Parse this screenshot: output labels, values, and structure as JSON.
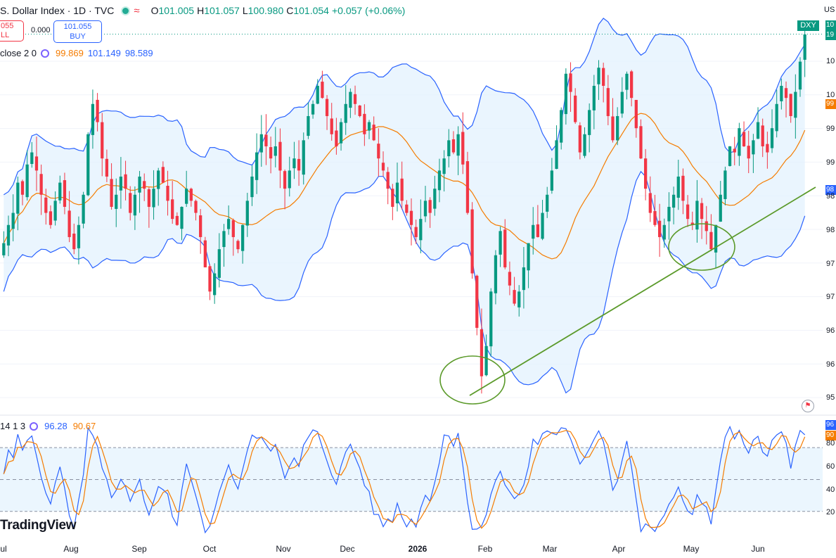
{
  "header": {
    "title": "S. Dollar Index · 1D · TVC",
    "open_label": "O",
    "open": "101.005",
    "high_label": "H",
    "high": "101.057",
    "low_label": "L",
    "low": "100.980",
    "close_label": "C",
    "close": "101.054",
    "change": "+0.057 (+0.06%)"
  },
  "trade": {
    "sell_price": "055",
    "sell_label": "LL",
    "spread": "0.000",
    "buy_price": "101.055",
    "buy_label": "BUY"
  },
  "bb_legend": {
    "params": "close 2 0",
    "basis": "99.869",
    "upper": "101.149",
    "lower": "98.589"
  },
  "stoch_legend": {
    "params": "14 1 3",
    "k": "96.28",
    "d": "90.67"
  },
  "brand": {
    "logo_text": "TradingView"
  },
  "right_axis": {
    "currency": "US",
    "symbol_tag": "DXY",
    "last_price_label": "10",
    "last_price_sub": "19",
    "bb_basis_label": "99",
    "bb_lower_label": "98",
    "price_ticks": [
      "10",
      "10",
      "99",
      "99",
      "98",
      "98",
      "97",
      "97",
      "96",
      "96",
      "95"
    ],
    "stoch_k_label": "96",
    "stoch_d_label": "90",
    "stoch_ticks": [
      "80",
      "60",
      "40",
      "20"
    ]
  },
  "colors": {
    "up": "#089981",
    "down": "#f23645",
    "bb_band": "#2962ff",
    "bb_basis": "#f57c00",
    "bb_fill": "#e3f2fd",
    "trendline": "#5b9a2a",
    "stoch_k": "#2962ff",
    "stoch_d": "#f57c00"
  },
  "chart_data": {
    "type": "candlestick",
    "symbol": "DXY",
    "interval": "1D",
    "price_range": [
      95.0,
      101.1
    ],
    "x_labels": [
      "Jul",
      "Aug",
      "Sep",
      "Oct",
      "Nov",
      "Dec",
      "2026",
      "Feb",
      "Mar",
      "Apr",
      "May",
      "Jun"
    ],
    "last_close": 101.054,
    "bollinger": {
      "basis": 99.869,
      "upper": 101.149,
      "lower": 98.589
    },
    "stochastic": {
      "k": 96.28,
      "d": 90.67,
      "levels": [
        80,
        50,
        20
      ]
    },
    "closes": [
      97.6,
      97.9,
      98.1,
      98.6,
      98.4,
      98.9,
      99.1,
      98.8,
      98.4,
      98.1,
      97.9,
      98.3,
      98.6,
      98.2,
      97.7,
      97.5,
      97.9,
      98.4,
      99.4,
      99.9,
      99.6,
      99.0,
      98.7,
      98.2,
      98.4,
      98.7,
      98.5,
      98.1,
      98.4,
      98.7,
      98.5,
      98.2,
      98.5,
      98.8,
      98.6,
      98.3,
      98.0,
      97.9,
      98.2,
      98.5,
      98.3,
      98.1,
      97.7,
      97.2,
      96.8,
      97.1,
      97.5,
      97.8,
      98.0,
      97.7,
      97.5,
      97.9,
      98.3,
      98.7,
      99.1,
      99.4,
      99.2,
      99.0,
      99.2,
      98.8,
      98.5,
      98.8,
      99.0,
      98.8,
      99.3,
      99.7,
      99.9,
      100.2,
      100.0,
      99.7,
      99.4,
      99.2,
      99.6,
      99.9,
      100.1,
      99.9,
      99.7,
      99.4,
      99.6,
      99.3,
      99.0,
      98.8,
      98.5,
      98.2,
      98.6,
      98.3,
      98.1,
      97.9,
      97.7,
      98.0,
      98.3,
      98.1,
      98.5,
      98.8,
      99.0,
      99.3,
      99.1,
      99.4,
      98.9,
      98.1,
      97.1,
      96.2,
      95.4,
      95.9,
      96.8,
      97.4,
      97.8,
      97.2,
      96.9,
      96.6,
      96.8,
      97.2,
      97.6,
      97.9,
      97.7,
      98.1,
      98.4,
      98.8,
      99.3,
      99.8,
      100.4,
      100.1,
      99.6,
      99.1,
      99.4,
      99.8,
      100.2,
      100.5,
      100.2,
      99.7,
      99.3,
      99.7,
      100.1,
      100.4,
      100.0,
      99.5,
      99.0,
      98.5,
      98.1,
      97.9,
      97.7,
      97.9,
      98.2,
      98.4,
      98.7,
      98.3,
      98.0,
      97.9,
      98.3,
      98.0,
      97.8,
      97.5,
      97.9,
      98.4,
      98.8,
      99.2,
      99.1,
      99.5,
      99.2,
      99.0,
      99.3,
      99.6,
      99.2,
      99.1,
      99.5,
      99.9,
      100.2,
      100.0,
      99.7,
      100.1,
      100.6,
      101.05
    ]
  }
}
